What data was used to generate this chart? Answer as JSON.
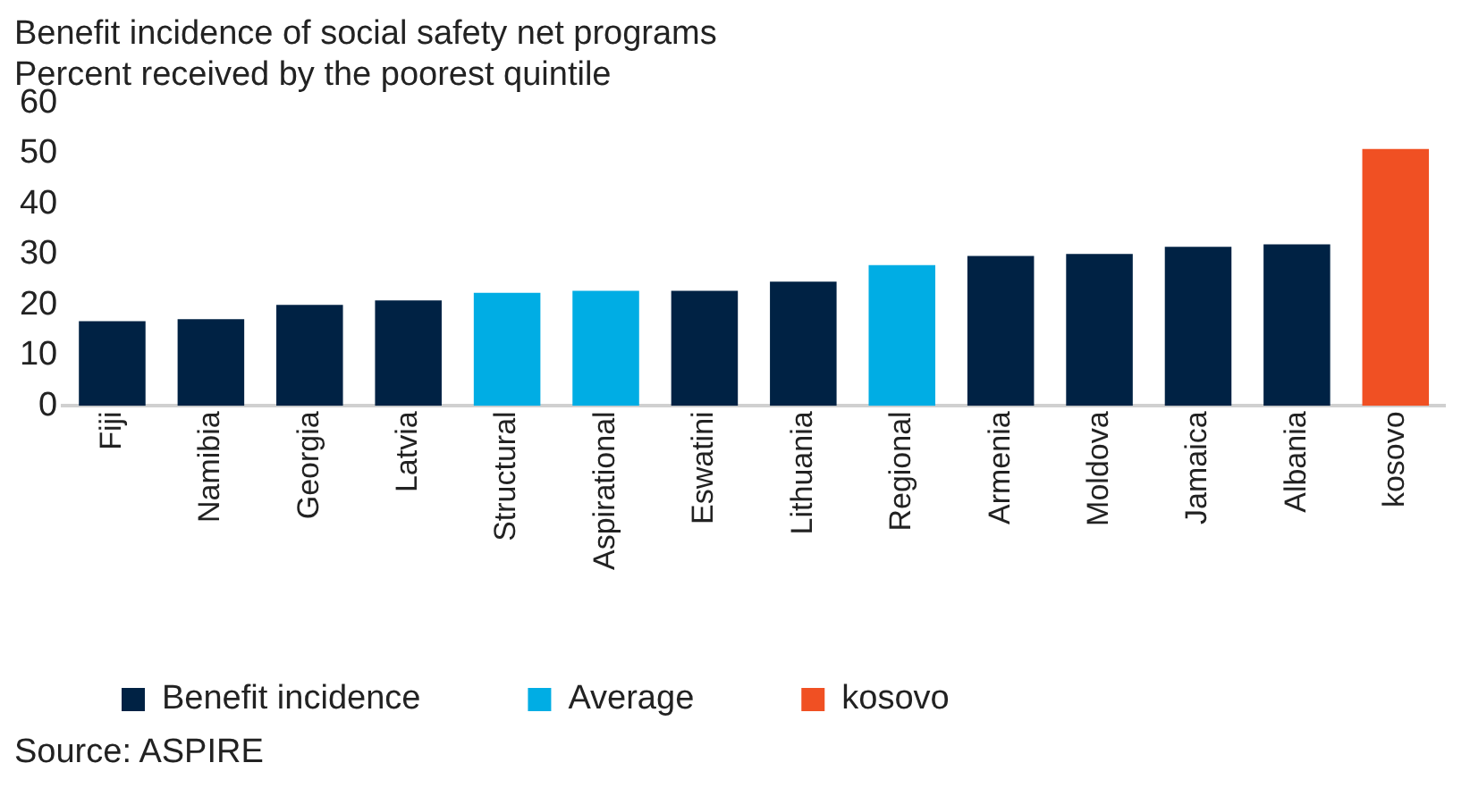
{
  "chart_data": {
    "type": "bar",
    "title": "Benefit incidence of social safety net programs",
    "subtitle": "Percent received by the poorest quintile",
    "categories": [
      "Fiji",
      "Namibia",
      "Georgia",
      "Latvia",
      "Structural",
      "Aspirational",
      "Eswatini",
      "Lithuania",
      "Regional",
      "Armenia",
      "Moldova",
      "Jamaica",
      "Albania",
      "kosovo"
    ],
    "series": [
      {
        "name": "Benefit incidence",
        "color": "#002244",
        "values": [
          16.8,
          17.2,
          20.0,
          20.9,
          null,
          null,
          22.8,
          24.6,
          null,
          29.7,
          30.1,
          31.5,
          32.0,
          null
        ]
      },
      {
        "name": "Average",
        "color": "#00ade4",
        "values": [
          null,
          null,
          null,
          null,
          22.4,
          22.8,
          null,
          null,
          27.9,
          null,
          null,
          null,
          null,
          null
        ]
      },
      {
        "name": "kosovo",
        "color": "#f05023",
        "values": [
          null,
          null,
          null,
          null,
          null,
          null,
          null,
          null,
          null,
          null,
          null,
          null,
          null,
          50.9
        ]
      }
    ],
    "stacked": true,
    "ylim": [
      0,
      60
    ],
    "yticks": [
      0,
      10,
      20,
      30,
      40,
      50,
      60
    ],
    "grid": false,
    "legend": "bottom",
    "annotations": [
      "Source: ASPIRE"
    ]
  }
}
